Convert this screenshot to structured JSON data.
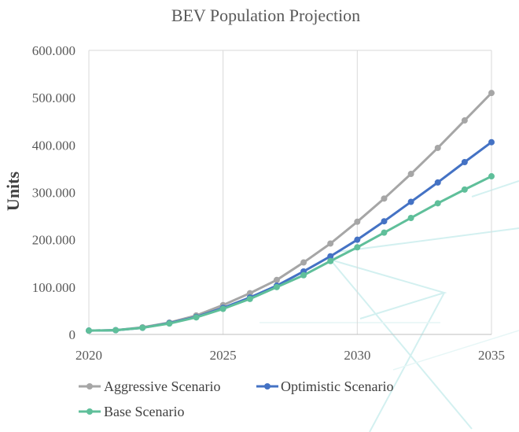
{
  "chart_data": {
    "type": "line",
    "title": "BEV Population Projection",
    "xlabel": "",
    "ylabel": "Units",
    "x": [
      2020,
      2021,
      2022,
      2023,
      2024,
      2025,
      2026,
      2027,
      2028,
      2029,
      2030,
      2031,
      2032,
      2033,
      2034,
      2035
    ],
    "xticks": [
      2020,
      2025,
      2030,
      2035
    ],
    "xtick_labels": [
      "2020",
      "2025",
      "2030",
      "2035"
    ],
    "xlim": [
      2020,
      2035
    ],
    "ylim": [
      0,
      600000
    ],
    "yticks": [
      0,
      100000,
      200000,
      300000,
      400000,
      500000,
      600000
    ],
    "ytick_labels": [
      "0",
      "100.000",
      "200.000",
      "300.000",
      "400.000",
      "500.000",
      "600.000"
    ],
    "grid": "vertical-major",
    "legend_position": "bottom",
    "series": [
      {
        "name": "Aggressive Scenario",
        "color": "#a6a6a6",
        "values": [
          8000,
          9000,
          15000,
          25000,
          40000,
          62000,
          87000,
          115000,
          152000,
          192000,
          238000,
          287000,
          339000,
          394000,
          452000,
          510000
        ]
      },
      {
        "name": "Optimistic Scenario",
        "color": "#4472c4",
        "values": [
          8000,
          9000,
          14000,
          24000,
          37000,
          56000,
          78000,
          103000,
          133000,
          165000,
          200000,
          239000,
          280000,
          321000,
          364000,
          406000
        ]
      },
      {
        "name": "Base Scenario",
        "color": "#5fbf9a",
        "values": [
          8000,
          9000,
          14000,
          23000,
          36000,
          54000,
          75000,
          100000,
          125000,
          155000,
          184000,
          215000,
          246000,
          277000,
          306000,
          334000
        ]
      }
    ]
  }
}
